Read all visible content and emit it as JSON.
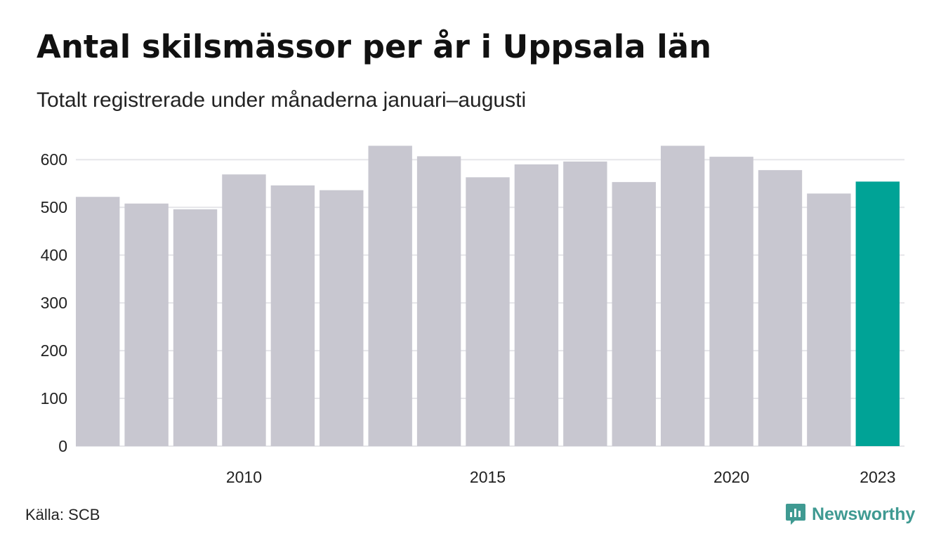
{
  "header": {
    "title": "Antal skilsmässor per år i Uppsala län",
    "subtitle": "Totalt registrerade under månaderna januari–augusti"
  },
  "footer": {
    "source": "Källa: SCB",
    "brand": "Newsworthy",
    "brand_icon": "newsworthy-logo-icon"
  },
  "colors": {
    "bar": "#c8c7d0",
    "highlight": "#00a396",
    "grid": "#e6e6ea",
    "brand": "#3f9a92"
  },
  "chart_data": {
    "type": "bar",
    "title": "Antal skilsmässor per år i Uppsala län",
    "subtitle": "Totalt registrerade under månaderna januari–augusti",
    "x": [
      2007,
      2008,
      2009,
      2010,
      2011,
      2012,
      2013,
      2014,
      2015,
      2016,
      2017,
      2018,
      2019,
      2020,
      2021,
      2022,
      2023
    ],
    "values": [
      522,
      508,
      496,
      569,
      546,
      536,
      629,
      607,
      563,
      590,
      596,
      553,
      629,
      606,
      578,
      529,
      554
    ],
    "highlight": 2023,
    "x_tick_labels": [
      "2010",
      "2015",
      "2020",
      "2023"
    ],
    "y_ticks": [
      0,
      100,
      200,
      300,
      400,
      500,
      600
    ],
    "ylim": [
      0,
      640
    ],
    "grid": true,
    "legend": false
  }
}
